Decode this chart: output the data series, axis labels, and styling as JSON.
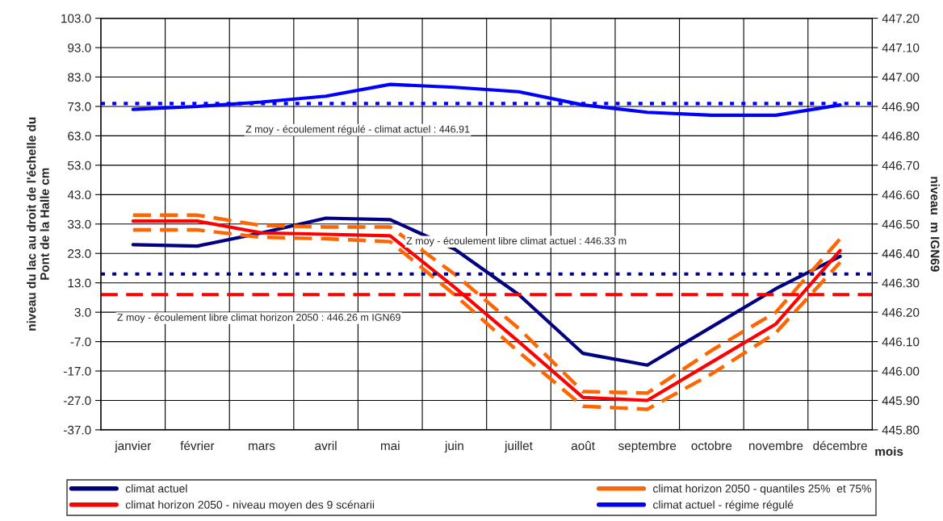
{
  "chart_data": {
    "type": "line",
    "categories": [
      "janvier",
      "février",
      "mars",
      "avril",
      "mai",
      "juin",
      "juillet",
      "août",
      "septembre",
      "octobre",
      "novembre",
      "décembre"
    ],
    "series": [
      {
        "name": "climat actuel",
        "color": "#000080",
        "line_style": "solid",
        "values": [
          26,
          25.5,
          30,
          35,
          34.5,
          24.5,
          9,
          -11,
          -15,
          -2,
          11,
          22
        ]
      },
      {
        "name": "climat horizon 2050 - quantiles 25%  et 75%",
        "color": "#ff6600",
        "line_style": "dashed",
        "values": [
          36,
          36,
          32.5,
          32,
          32,
          16,
          -2.5,
          -24,
          -24.5,
          -10,
          3,
          28
        ]
      },
      {
        "color": "#ff6600",
        "line_style": "dashed",
        "values": [
          31,
          31,
          28.5,
          28,
          27,
          9,
          -10.5,
          -29,
          -30,
          -18,
          -4,
          20
        ]
      },
      {
        "name": "climat horizon 2050 - niveau moyen des 9 scénarii",
        "color": "#ff0000",
        "line_style": "solid",
        "values": [
          34,
          34,
          30,
          29.5,
          29,
          11.5,
          -7,
          -26,
          -27,
          -14,
          -1,
          24
        ]
      },
      {
        "name": "climat actuel - régime régulé",
        "color": "#0000ff",
        "line_style": "solid",
        "values": [
          72,
          73,
          74.5,
          76.5,
          80.5,
          79.5,
          78,
          73.5,
          71,
          70,
          70,
          73.5
        ]
      }
    ],
    "ref_lines": [
      {
        "axis": "y2",
        "value": 446.91,
        "label": "Z moy - écoulement régulé - climat actuel : 446.91",
        "color": "#0000ff",
        "line_style": "dotted"
      },
      {
        "axis": "y2",
        "value": 446.33,
        "label": "Z moy - écoulement libre climat actuel : 446.33 m",
        "color": "#000080",
        "line_style": "dotted"
      },
      {
        "axis": "y2",
        "value": 446.26,
        "label": "Z moy - écoulement libre climat horizon 2050 : 446.26 m IGN69",
        "color": "#ff0000",
        "line_style": "dashed"
      }
    ],
    "xlabel": "mois",
    "ylabel": "niveau du lac au droit de l'échelle du\nPont de la Halle cm",
    "y2label": "niveau  m IGN69",
    "ylim": [
      -37,
      103
    ],
    "yticks": [
      {
        "value": -37,
        "label": "-37.0"
      },
      {
        "value": -27,
        "label": "-27.0"
      },
      {
        "value": -17,
        "label": "-17.0"
      },
      {
        "value": -7,
        "label": "-7.0"
      },
      {
        "value": 3,
        "label": "3.0"
      },
      {
        "value": 13,
        "label": "13.0"
      },
      {
        "value": 23,
        "label": "23.0"
      },
      {
        "value": 33,
        "label": "33.0"
      },
      {
        "value": 43,
        "label": "43.0"
      },
      {
        "value": 53,
        "label": "53.0"
      },
      {
        "value": 63,
        "label": "63.0"
      },
      {
        "value": 73,
        "label": "73.0"
      },
      {
        "value": 83,
        "label": "83.0"
      },
      {
        "value": 93,
        "label": "93.0"
      },
      {
        "value": 103,
        "label": "103.0"
      }
    ],
    "y2lim": [
      445.8,
      447.2
    ],
    "y2ticks": [
      {
        "value": 445.8,
        "label": "445.80"
      },
      {
        "value": 445.9,
        "label": "445.90"
      },
      {
        "value": 446.0,
        "label": "446.00"
      },
      {
        "value": 446.1,
        "label": "446.10"
      },
      {
        "value": 446.2,
        "label": "446.20"
      },
      {
        "value": 446.3,
        "label": "446.30"
      },
      {
        "value": 446.4,
        "label": "446.40"
      },
      {
        "value": 446.5,
        "label": "446.50"
      },
      {
        "value": 446.6,
        "label": "446.60"
      },
      {
        "value": 446.7,
        "label": "446.70"
      },
      {
        "value": 446.8,
        "label": "446.80"
      },
      {
        "value": 446.9,
        "label": "446.90"
      },
      {
        "value": 447.0,
        "label": "447.00"
      },
      {
        "value": 447.1,
        "label": "447.10"
      },
      {
        "value": 447.2,
        "label": "447.20"
      }
    ],
    "grid": true,
    "legend": "bottom"
  }
}
